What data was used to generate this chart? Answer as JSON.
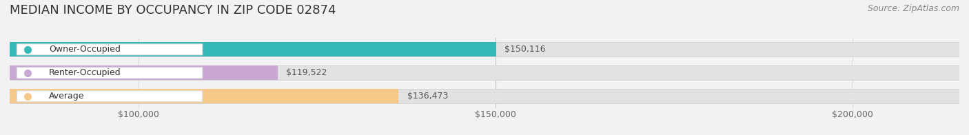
{
  "title": "MEDIAN INCOME BY OCCUPANCY IN ZIP CODE 02874",
  "source": "Source: ZipAtlas.com",
  "categories": [
    "Owner-Occupied",
    "Renter-Occupied",
    "Average"
  ],
  "values": [
    150116,
    119522,
    136473
  ],
  "labels": [
    "$150,116",
    "$119,522",
    "$136,473"
  ],
  "bar_colors": [
    "#35b8b8",
    "#c9a8d4",
    "#f5c98a"
  ],
  "xlim": [
    82000,
    215000
  ],
  "xticks": [
    100000,
    150000,
    200000
  ],
  "xtick_labels": [
    "$100,000",
    "$150,000",
    "$200,000"
  ],
  "background_color": "#f2f2f2",
  "bar_bg_color": "#e2e2e2",
  "title_fontsize": 13,
  "source_fontsize": 9,
  "label_fontsize": 9,
  "tick_fontsize": 9,
  "bar_height": 0.62,
  "figsize": [
    14.06,
    1.96
  ],
  "dpi": 100
}
